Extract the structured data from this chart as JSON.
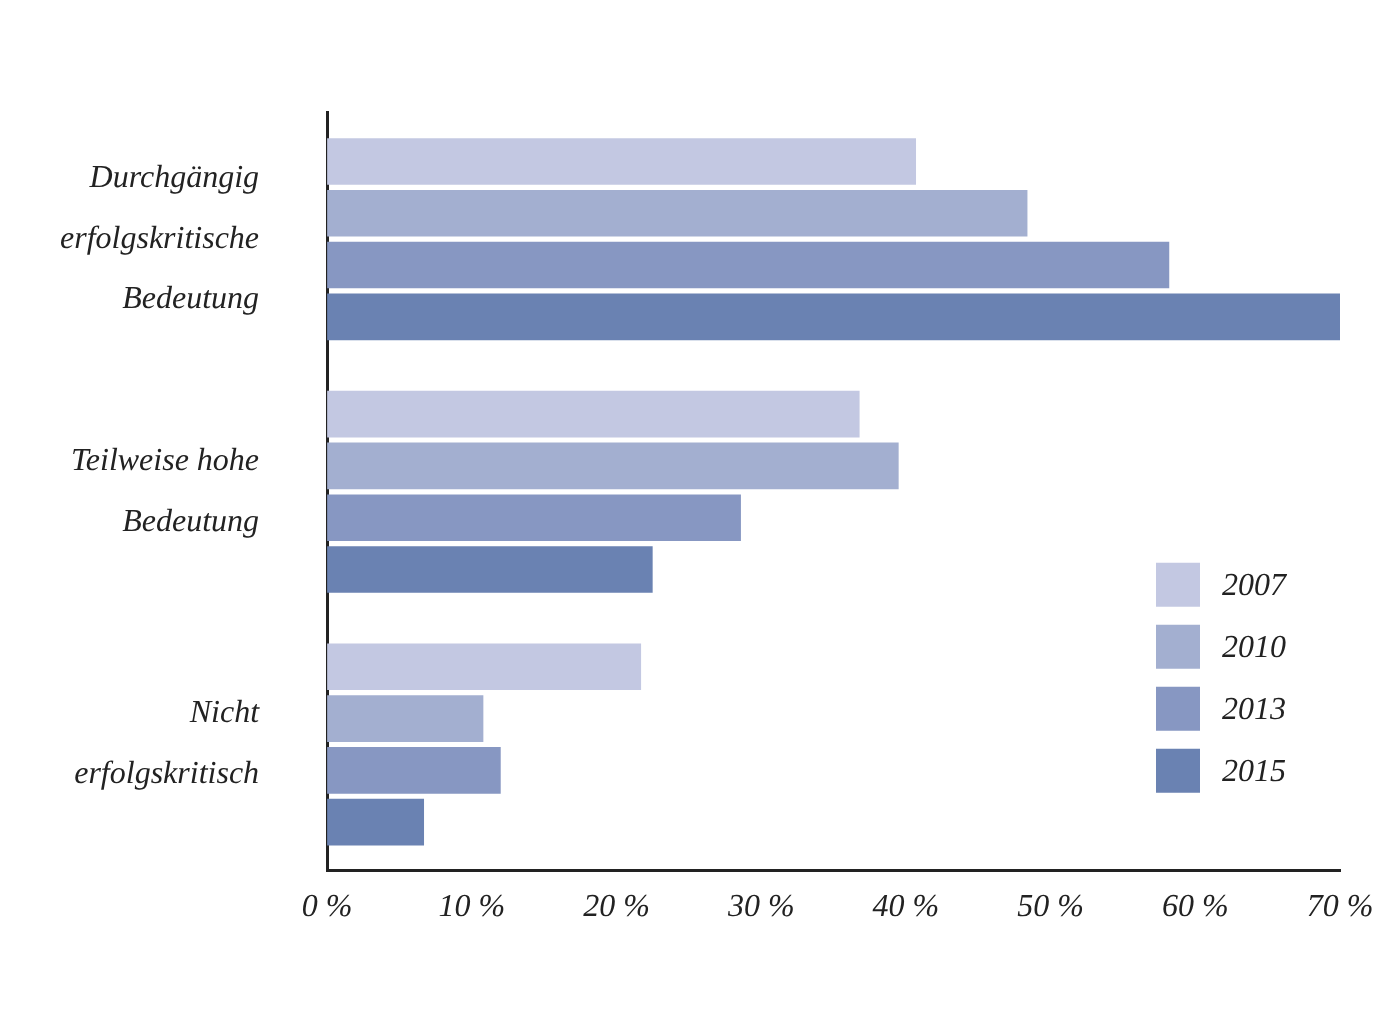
{
  "chart_data": {
    "type": "bar",
    "orientation": "horizontal",
    "categories": [
      "Durchgängig erfolgskritische Bedeutung",
      "Teilweise hohe Bedeutung",
      "Nicht erfolgskritisch"
    ],
    "series": [
      {
        "name": "2007",
        "color": "#c3c8e2",
        "values": [
          40.7,
          36.8,
          21.7
        ]
      },
      {
        "name": "2010",
        "color": "#a3afd0",
        "values": [
          48.4,
          39.5,
          10.8
        ]
      },
      {
        "name": "2013",
        "color": "#8797c2",
        "values": [
          58.2,
          28.6,
          12
        ]
      },
      {
        "name": "2015",
        "color": "#6a82b2",
        "values": [
          70,
          22.5,
          6.7
        ]
      }
    ],
    "xlim": [
      0,
      70
    ],
    "xticks": [
      {
        "value": 0,
        "label": "0 %"
      },
      {
        "value": 10,
        "label": "10 %"
      },
      {
        "value": 20,
        "label": "20 %"
      },
      {
        "value": 30,
        "label": "30 %"
      },
      {
        "value": 40,
        "label": "40 %"
      },
      {
        "value": 50,
        "label": "50 %"
      },
      {
        "value": 60,
        "label": "60 %"
      },
      {
        "value": 70,
        "label": "70 %"
      }
    ],
    "grid": false,
    "legend": "bottom right"
  }
}
